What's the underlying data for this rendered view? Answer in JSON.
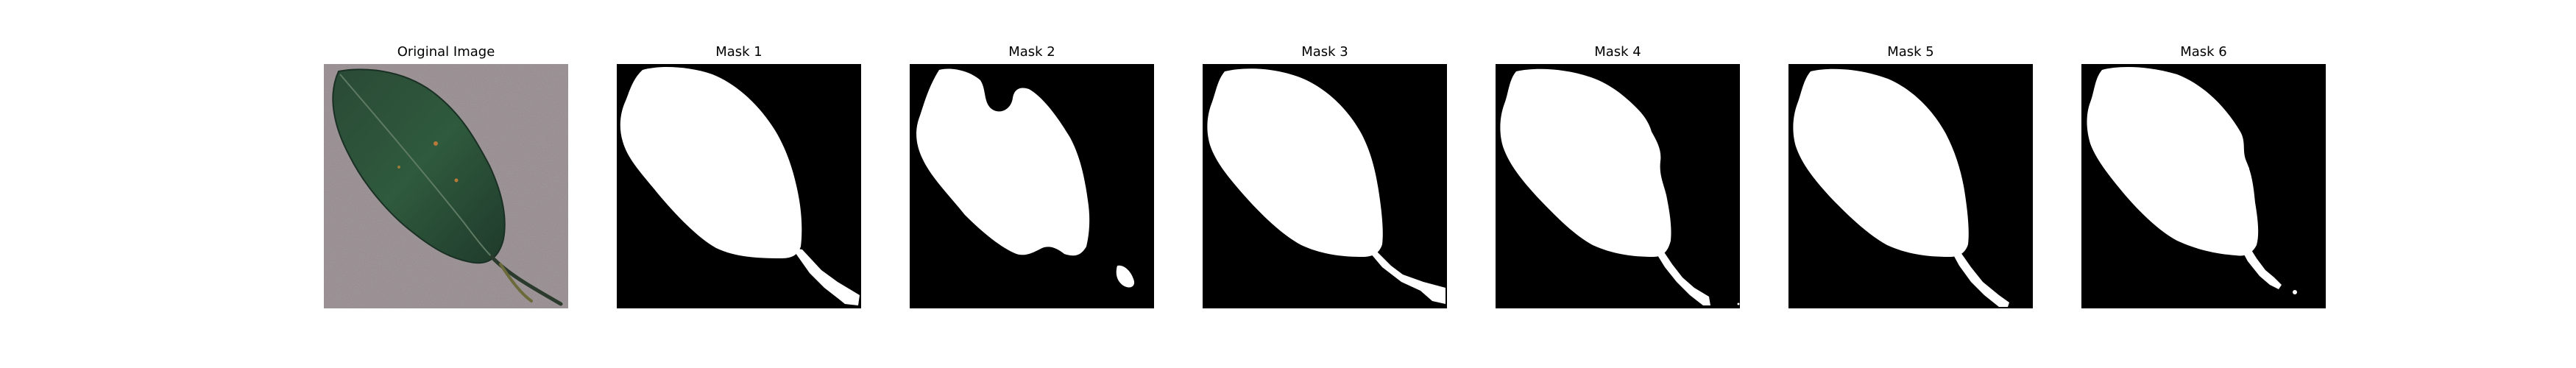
{
  "figure": {
    "panels": [
      {
        "title": "Original Image"
      },
      {
        "title": "Mask 1"
      },
      {
        "title": "Mask 2"
      },
      {
        "title": "Mask 3"
      },
      {
        "title": "Mask 4"
      },
      {
        "title": "Mask 5"
      },
      {
        "title": "Mask 6"
      }
    ]
  },
  "colors": {
    "mask_foreground": "#ffffff",
    "mask_background": "#000000",
    "leaf_dark": "#22402e",
    "leaf_mid": "#2f5a3d",
    "background_gray": "#9a8f92"
  }
}
